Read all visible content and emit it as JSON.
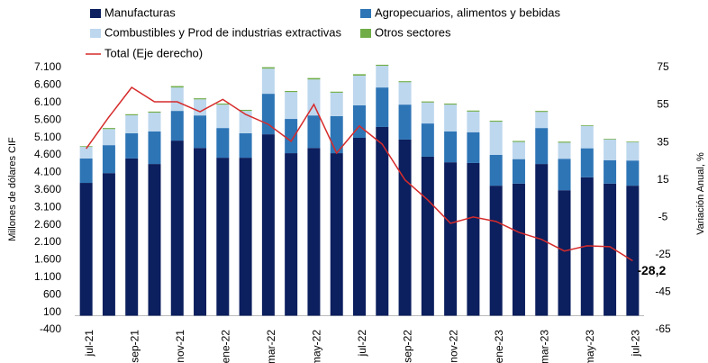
{
  "chart_data": {
    "type": "bar",
    "y_label": "Millones de dólares CIF",
    "y2_label": "Variación Anual, %",
    "stacked": true,
    "categories": [
      "jul-21",
      null,
      "sep-21",
      null,
      "nov-21",
      null,
      "ene-22",
      null,
      "mar-22",
      null,
      "may-22",
      null,
      "jul-22",
      null,
      "sep-22",
      null,
      "nov-22",
      null,
      "ene-23",
      null,
      "mar-23",
      null,
      "may-23",
      null,
      "jul-23"
    ],
    "series": [
      {
        "name": "Manufacturas",
        "color": "#0c1f5e",
        "values": [
          3800,
          4080,
          4500,
          4340,
          5010,
          4800,
          4520,
          4520,
          5190,
          4650,
          4800,
          4650,
          5090,
          5400,
          5040,
          4550,
          4390,
          4370,
          3720,
          3780,
          4340,
          3590,
          3960,
          3780,
          3720
        ]
      },
      {
        "name": "Agropecuarios, alimentos y bebidas",
        "color": "#2e75b6",
        "values": [
          700,
          800,
          720,
          930,
          850,
          930,
          850,
          700,
          1160,
          980,
          930,
          1060,
          930,
          1130,
          1000,
          950,
          880,
          880,
          880,
          700,
          1030,
          900,
          830,
          670,
          720
        ]
      },
      {
        "name": "Combustibles y Prod de industrias extractivas",
        "color": "#bdd7ee",
        "values": [
          330,
          460,
          515,
          540,
          670,
          460,
          670,
          640,
          720,
          770,
          1030,
          670,
          850,
          620,
          640,
          600,
          770,
          590,
          950,
          490,
          460,
          460,
          640,
          590,
          520
        ]
      },
      {
        "name": "Otros sectores",
        "color": "#70ad47",
        "values": [
          20,
          30,
          30,
          30,
          40,
          30,
          30,
          30,
          40,
          30,
          40,
          30,
          40,
          30,
          30,
          30,
          30,
          30,
          30,
          30,
          30,
          30,
          20,
          20,
          20
        ]
      },
      {
        "name": "Total (Eje derecho)",
        "color": "#d62b2b",
        "type": "line",
        "axis": "y2",
        "values": [
          31.7,
          48.6,
          64.4,
          56.7,
          56.7,
          51.4,
          58,
          50,
          44.7,
          35.6,
          55.3,
          29.3,
          43.8,
          34.1,
          15,
          4.3,
          -8.2,
          -4.8,
          -7.2,
          -13,
          -16.8,
          -23,
          -20.2,
          -20.7,
          -28.2
        ],
        "value_labels": [
          null,
          null,
          null,
          null,
          null,
          null,
          null,
          null,
          null,
          null,
          null,
          null,
          null,
          null,
          null,
          null,
          null,
          null,
          null,
          null,
          null,
          null,
          null,
          null,
          "-28,2"
        ]
      }
    ],
    "ylim": [
      -400,
      7100
    ],
    "yticks": [
      -400,
      100,
      600,
      {
        "value": 1100,
        "label": "1.100"
      },
      {
        "value": 1600,
        "label": "1.600"
      },
      {
        "value": 2100,
        "label": "2.100"
      },
      {
        "value": 2600,
        "label": "2.600"
      },
      {
        "value": 3100,
        "label": "3.100"
      },
      {
        "value": 3600,
        "label": "3.600"
      },
      {
        "value": 4100,
        "label": "4.100"
      },
      {
        "value": 4600,
        "label": "4.600"
      },
      {
        "value": 5100,
        "label": "5.100"
      },
      {
        "value": 5600,
        "label": "5.600"
      },
      {
        "value": 6100,
        "label": "6.100"
      },
      {
        "value": 6600,
        "label": "6.600"
      },
      {
        "value": 7100,
        "label": "7.100"
      }
    ],
    "y2lim": [
      -65,
      75
    ],
    "y2ticks": [
      -65,
      -45,
      -25,
      -5,
      15,
      35,
      55,
      75
    ],
    "grid": false
  }
}
